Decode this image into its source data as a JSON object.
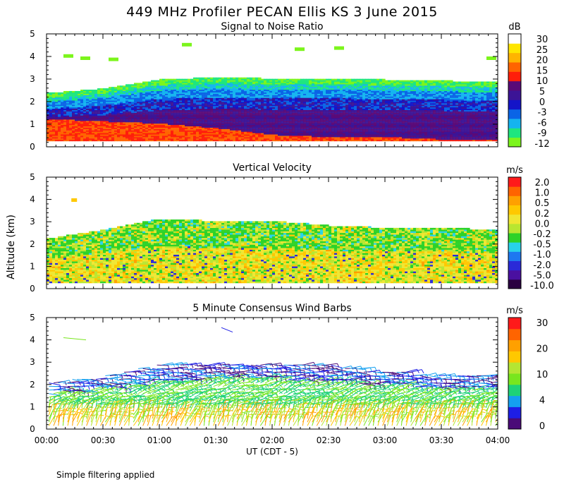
{
  "figure": {
    "title": "449 MHz Profiler PECAN Ellis KS  3 June 2015",
    "y_axis_label": "Altitude (km)",
    "x_axis_label": "UT  (CDT - 5)",
    "footer": "Simple filtering applied",
    "x_ticks": [
      "00:00",
      "00:30",
      "01:00",
      "01:30",
      "02:00",
      "02:30",
      "03:00",
      "03:30",
      "04:00"
    ],
    "y_ticks": [
      "0",
      "1",
      "2",
      "3",
      "4",
      "5"
    ]
  },
  "colors": {
    "snr": [
      "#7cf51c",
      "#1ee67f",
      "#14b4f0",
      "#0a64e6",
      "#1414c8",
      "#3c1496",
      "#5a0a78",
      "#ff1e0a",
      "#ff6400",
      "#ffb400",
      "#ffe600",
      "#ffffff"
    ],
    "vv": [
      "#2a0040",
      "#4a10a0",
      "#2a2ad8",
      "#1e78f0",
      "#28d2ea",
      "#2dd228",
      "#b9e630",
      "#f0e632",
      "#ffc800",
      "#ffa000",
      "#ff6400",
      "#ff1a1a"
    ],
    "wind": [
      "#4a0a78",
      "#1e1ee6",
      "#14a0f0",
      "#1ed278",
      "#78e61e",
      "#b4e632",
      "#ffc800",
      "#ffa000",
      "#ff6400",
      "#ff1a1a"
    ]
  },
  "chart_data": [
    {
      "type": "heatmap",
      "title": "Signal to Noise Ratio",
      "xlabel": "UT  (CDT - 5)",
      "ylabel": "Altitude (km)",
      "xlim": [
        0,
        4
      ],
      "ylim": [
        0,
        5
      ],
      "colorbar": {
        "unit": "dB",
        "ticks": [
          "30",
          "25",
          "20",
          "15",
          "10",
          "5",
          "0",
          "-3",
          "-6",
          "-9",
          "-12"
        ]
      },
      "layers": [
        {
          "name": "boundary-layer top (approx)",
          "x": [
            0.0,
            0.5,
            1.0,
            1.5,
            2.0,
            2.5,
            3.0,
            3.5,
            4.0
          ],
          "y": [
            2.3,
            2.5,
            2.9,
            3.0,
            2.95,
            2.95,
            2.9,
            2.85,
            2.8
          ]
        },
        {
          "name": "strong return top (approx)",
          "x": [
            0.0,
            0.5,
            1.0,
            1.5,
            2.0,
            2.5,
            3.0,
            3.5,
            4.0
          ],
          "y": [
            1.2,
            1.1,
            1.0,
            0.8,
            0.5,
            0.4,
            0.4,
            0.3,
            0.3
          ]
        }
      ]
    },
    {
      "type": "heatmap",
      "title": "Vertical Velocity",
      "xlabel": "UT  (CDT - 5)",
      "ylabel": "Altitude (km)",
      "xlim": [
        0,
        4
      ],
      "ylim": [
        0,
        5
      ],
      "colorbar": {
        "unit": "m/s",
        "ticks": [
          "2.0",
          "1.0",
          "0.5",
          "0.2",
          "0.0",
          "-0.2",
          "-0.5",
          "-1.0",
          "-2.0",
          "-5.0",
          "-10.0"
        ]
      },
      "layers": [
        {
          "name": "data top (approx)",
          "x": [
            0.0,
            0.5,
            1.0,
            1.5,
            2.0,
            2.5,
            3.0,
            3.5,
            4.0
          ],
          "y": [
            2.2,
            2.6,
            3.1,
            3.0,
            3.0,
            2.8,
            2.7,
            2.7,
            2.6
          ]
        }
      ]
    },
    {
      "type": "heatmap",
      "title": "5 Minute Consensus Wind Barbs",
      "xlabel": "UT  (CDT - 5)",
      "ylabel": "Altitude (km)",
      "xlim": [
        0,
        4
      ],
      "ylim": [
        0,
        5
      ],
      "colorbar": {
        "unit": "m/s",
        "ticks": [
          "30",
          "20",
          "10",
          "4",
          "0"
        ]
      },
      "layers": [
        {
          "name": "barb top (approx)",
          "x": [
            0.0,
            0.5,
            1.0,
            1.5,
            2.0,
            2.5,
            3.0,
            3.5,
            4.0
          ],
          "y": [
            2.1,
            2.4,
            2.9,
            3.0,
            3.0,
            2.9,
            2.6,
            2.5,
            2.4
          ]
        }
      ]
    }
  ]
}
